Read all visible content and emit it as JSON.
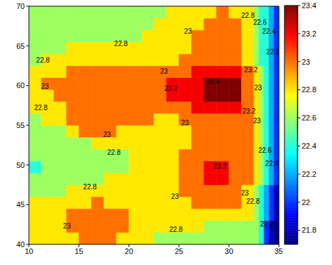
{
  "chart_data": {
    "type": "contour",
    "xlim": [
      10,
      35
    ],
    "xticks": [
      10,
      15,
      20,
      25,
      30,
      35
    ],
    "ylim": [
      40,
      70
    ],
    "yticks": [
      40,
      45,
      50,
      55,
      60,
      65,
      70
    ],
    "levels": [
      21.8,
      22,
      22.2,
      22.4,
      22.6,
      22.8,
      23,
      23.2,
      23.4
    ],
    "colorbar": {
      "lim": [
        21.7,
        23.4
      ],
      "ticks": [
        21.8,
        22,
        22.2,
        22.4,
        22.6,
        22.8,
        23,
        23.2,
        23.4
      ]
    },
    "x_edges": [
      10,
      11.25,
      12.5,
      13.75,
      15,
      16.25,
      17.5,
      18.75,
      20,
      21.25,
      22.5,
      23.75,
      25,
      26.25,
      27.5,
      28.75,
      30,
      31.25,
      32.5,
      33,
      33.5,
      34,
      34.5,
      35
    ],
    "y_edges": [
      40,
      41.5,
      43,
      44.5,
      46,
      47.5,
      49,
      50.5,
      52,
      53.5,
      55,
      56.5,
      58,
      59.5,
      61,
      62.5,
      64,
      65.5,
      67,
      68.5,
      70
    ],
    "values": [
      [
        22.9,
        22.9,
        22.9,
        22.9,
        23.1,
        23.1,
        23.1,
        22.9,
        22.9,
        22.9,
        22.7,
        22.7,
        22.7,
        22.7,
        22.7,
        22.7,
        22.7,
        22.7,
        22.7,
        22.5,
        22.1,
        21.9,
        21.75
      ],
      [
        22.9,
        22.9,
        22.9,
        23.1,
        23.1,
        23.1,
        23.1,
        23.1,
        22.9,
        22.9,
        22.9,
        22.9,
        22.9,
        22.9,
        22.7,
        22.7,
        22.7,
        22.7,
        22.7,
        22.5,
        22.1,
        21.9,
        21.75
      ],
      [
        22.9,
        22.9,
        22.9,
        23.1,
        23.1,
        23.1,
        23.1,
        23.1,
        22.9,
        22.9,
        22.9,
        22.9,
        22.9,
        22.9,
        22.9,
        22.9,
        22.9,
        22.9,
        22.7,
        22.5,
        22.3,
        22.1,
        21.9
      ],
      [
        22.9,
        22.9,
        22.9,
        22.9,
        22.9,
        23.1,
        22.9,
        22.9,
        22.9,
        22.9,
        22.9,
        22.9,
        22.9,
        23.1,
        23.1,
        23.1,
        23.1,
        22.9,
        22.7,
        22.5,
        22.3,
        22.1,
        21.9
      ],
      [
        22.7,
        22.7,
        22.7,
        22.9,
        22.9,
        22.9,
        22.9,
        22.9,
        22.9,
        22.9,
        22.9,
        22.9,
        23.1,
        23.1,
        23.1,
        23.1,
        23.1,
        22.9,
        22.7,
        22.5,
        22.3,
        22.1,
        21.9
      ],
      [
        22.7,
        22.7,
        22.7,
        22.7,
        22.7,
        22.7,
        22.9,
        22.9,
        22.9,
        22.9,
        22.9,
        22.9,
        23.1,
        23.1,
        23.3,
        23.3,
        23.1,
        23.1,
        22.9,
        22.7,
        22.5,
        22.3,
        22.1
      ],
      [
        22.5,
        22.7,
        22.7,
        22.7,
        22.7,
        22.7,
        22.7,
        22.7,
        22.9,
        22.9,
        22.9,
        22.9,
        23.1,
        23.1,
        23.3,
        23.3,
        23.1,
        23.1,
        22.9,
        22.7,
        22.5,
        22.3,
        22.1
      ],
      [
        22.7,
        22.7,
        22.7,
        22.7,
        22.7,
        22.7,
        22.7,
        22.7,
        22.9,
        22.9,
        22.9,
        22.9,
        23.1,
        23.1,
        23.1,
        23.1,
        23.1,
        23.1,
        22.9,
        22.7,
        22.5,
        22.3,
        22.1
      ],
      [
        22.7,
        22.7,
        22.7,
        22.7,
        22.7,
        22.9,
        22.9,
        22.9,
        22.9,
        22.9,
        22.9,
        22.9,
        22.9,
        23.1,
        23.1,
        23.1,
        23.1,
        23.1,
        22.9,
        22.7,
        22.5,
        22.3,
        22.1
      ],
      [
        22.7,
        22.7,
        22.7,
        22.9,
        23.1,
        23.1,
        23.1,
        22.9,
        22.9,
        22.9,
        22.9,
        22.9,
        22.9,
        23.1,
        23.1,
        23.1,
        23.1,
        23.1,
        22.9,
        22.7,
        22.5,
        22.3,
        22.1
      ],
      [
        22.7,
        22.9,
        22.9,
        23.1,
        23.1,
        23.1,
        23.1,
        23.1,
        23.1,
        23.1,
        22.9,
        22.9,
        23.1,
        23.1,
        23.1,
        23.1,
        23.1,
        23.1,
        22.9,
        22.7,
        22.5,
        22.3,
        22.1
      ],
      [
        22.9,
        22.9,
        22.9,
        23.1,
        23.1,
        23.1,
        23.1,
        23.1,
        23.1,
        23.1,
        23.1,
        23.1,
        23.1,
        23.3,
        23.3,
        23.3,
        23.3,
        23.1,
        22.9,
        22.7,
        22.5,
        22.3,
        22.1
      ],
      [
        22.9,
        22.9,
        23.1,
        23.1,
        23.1,
        23.1,
        23.1,
        23.1,
        23.1,
        23.1,
        23.1,
        23.3,
        23.3,
        23.3,
        23.4,
        23.4,
        23.4,
        23.1,
        22.9,
        22.7,
        22.5,
        22.3,
        22.1
      ],
      [
        22.9,
        23.1,
        23.1,
        23.1,
        23.1,
        23.1,
        23.1,
        23.1,
        23.1,
        23.1,
        23.1,
        23.3,
        23.3,
        23.3,
        23.4,
        23.4,
        23.4,
        23.1,
        22.9,
        22.7,
        22.5,
        22.3,
        22.1
      ],
      [
        22.9,
        22.9,
        22.9,
        23.1,
        23.1,
        23.1,
        23.1,
        23.1,
        23.1,
        23.1,
        23.1,
        23.1,
        23.1,
        23.3,
        23.3,
        23.3,
        23.3,
        23.1,
        22.9,
        22.7,
        22.5,
        22.3,
        22.1
      ],
      [
        22.7,
        22.9,
        22.9,
        22.9,
        22.9,
        22.9,
        22.9,
        22.9,
        22.9,
        22.9,
        22.9,
        22.9,
        23.1,
        23.1,
        23.1,
        23.1,
        23.1,
        22.9,
        22.7,
        22.5,
        22.5,
        22.3,
        22.1
      ],
      [
        22.7,
        22.7,
        22.7,
        22.9,
        22.9,
        22.9,
        22.9,
        22.9,
        22.9,
        22.9,
        22.9,
        22.9,
        22.9,
        23.1,
        23.1,
        23.1,
        23.1,
        22.9,
        22.7,
        22.5,
        22.5,
        22.3,
        22.1
      ],
      [
        22.7,
        22.7,
        22.7,
        22.7,
        22.7,
        22.7,
        22.7,
        22.7,
        22.7,
        22.9,
        22.9,
        22.9,
        22.9,
        23.1,
        23.1,
        23.1,
        23.1,
        22.9,
        22.7,
        22.5,
        22.5,
        22.3,
        22.1
      ],
      [
        22.7,
        22.7,
        22.7,
        22.7,
        22.7,
        22.7,
        22.7,
        22.7,
        22.7,
        22.7,
        22.9,
        22.9,
        22.9,
        22.9,
        23.1,
        23.1,
        23.1,
        22.9,
        22.7,
        22.5,
        22.5,
        22.3,
        22.1
      ],
      [
        22.7,
        22.7,
        22.7,
        22.7,
        22.7,
        22.7,
        22.7,
        22.7,
        22.7,
        22.7,
        22.7,
        22.9,
        22.9,
        22.9,
        22.9,
        23.1,
        22.9,
        22.9,
        22.7,
        22.5,
        22.5,
        22.3,
        22.1
      ]
    ],
    "annotations": [
      {
        "x": 11.4,
        "y": 63.2,
        "text": "22.8"
      },
      {
        "x": 11.6,
        "y": 59.9,
        "text": "23"
      },
      {
        "x": 11.2,
        "y": 57.2,
        "text": "22.8"
      },
      {
        "x": 19.2,
        "y": 65.3,
        "text": "22.8"
      },
      {
        "x": 25.9,
        "y": 66.8,
        "text": "23"
      },
      {
        "x": 31.9,
        "y": 68.8,
        "text": "22.8"
      },
      {
        "x": 33.1,
        "y": 68.0,
        "text": "22.6"
      },
      {
        "x": 34.0,
        "y": 66.8,
        "text": "22.4"
      },
      {
        "x": 34.4,
        "y": 64.2,
        "text": "22.2"
      },
      {
        "x": 23.5,
        "y": 61.8,
        "text": "23"
      },
      {
        "x": 24.2,
        "y": 59.6,
        "text": "23.2"
      },
      {
        "x": 28.4,
        "y": 60.5,
        "text": "23.4"
      },
      {
        "x": 32.2,
        "y": 62.0,
        "text": "23.2"
      },
      {
        "x": 32.9,
        "y": 59.7,
        "text": "23"
      },
      {
        "x": 32.0,
        "y": 56.8,
        "text": "23.2"
      },
      {
        "x": 32.8,
        "y": 55.6,
        "text": "23"
      },
      {
        "x": 33.6,
        "y": 51.8,
        "text": "22.6"
      },
      {
        "x": 34.3,
        "y": 50.2,
        "text": "22.4"
      },
      {
        "x": 17.8,
        "y": 53.8,
        "text": "23"
      },
      {
        "x": 25.6,
        "y": 55.3,
        "text": "23"
      },
      {
        "x": 18.5,
        "y": 51.6,
        "text": "22.8"
      },
      {
        "x": 16.1,
        "y": 47.2,
        "text": "22.8"
      },
      {
        "x": 29.1,
        "y": 49.8,
        "text": "23.2"
      },
      {
        "x": 24.6,
        "y": 46.0,
        "text": "23"
      },
      {
        "x": 31.6,
        "y": 46.5,
        "text": "23"
      },
      {
        "x": 32.4,
        "y": 45.4,
        "text": "22.8"
      },
      {
        "x": 13.8,
        "y": 42.3,
        "text": "23"
      },
      {
        "x": 24.7,
        "y": 41.9,
        "text": "22.8"
      },
      {
        "x": 33.8,
        "y": 42.6,
        "text": "22.2"
      }
    ]
  }
}
